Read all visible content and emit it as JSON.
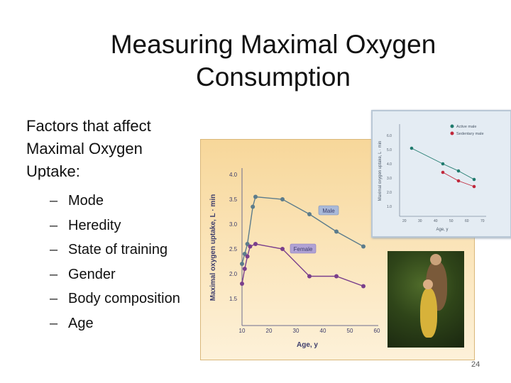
{
  "slide": {
    "title_line1": "Measuring Maximal Oxygen",
    "title_line2": "Consumption",
    "intro_line1": "Factors that affect",
    "intro_line2": "Maximal Oxygen",
    "intro_line3": "Uptake:",
    "factors": [
      "Mode",
      "Heredity",
      "State of training",
      "Gender",
      "Body composition",
      "Age"
    ],
    "bullet_char": "–",
    "page_number": "24"
  },
  "figure_main": {
    "ylabel": "Maximal oxygen uptake, L · min",
    "xlabel": "Age, y",
    "y_ticks": [
      "4.0",
      "3.5",
      "3.0",
      "2.5",
      "2.0",
      "1.5"
    ],
    "x_ticks": [
      "10",
      "20",
      "30",
      "40",
      "50",
      "60"
    ],
    "label_male": "Male",
    "label_female": "Female",
    "colors": {
      "male": "#5c7c8c",
      "female": "#7a3f8c",
      "label_bg": "#a9b9d8",
      "label_female_bg": "#b0a2d4"
    },
    "series": {
      "male": [
        [
          10,
          2.2
        ],
        [
          11,
          2.4
        ],
        [
          12,
          2.6
        ],
        [
          14,
          3.35
        ],
        [
          15,
          3.55
        ],
        [
          25,
          3.5
        ],
        [
          35,
          3.2
        ],
        [
          45,
          2.85
        ],
        [
          55,
          2.55
        ]
      ],
      "female": [
        [
          10,
          1.8
        ],
        [
          11,
          2.1
        ],
        [
          12,
          2.35
        ],
        [
          13,
          2.55
        ],
        [
          15,
          2.6
        ],
        [
          25,
          2.5
        ],
        [
          35,
          1.95
        ],
        [
          45,
          1.95
        ],
        [
          55,
          1.75
        ]
      ]
    }
  },
  "figure_inset": {
    "ylabel": "Maximal oxygen uptake, L · min",
    "xlabel": "Age, y",
    "legend_active": "Active male",
    "legend_sedentary": "Sedentary male",
    "y_ticks": [
      "6.0",
      "5.0",
      "4.0",
      "3.0",
      "2.0",
      "1.0"
    ],
    "x_ticks": [
      "20",
      "30",
      "40",
      "50",
      "60",
      "70"
    ],
    "colors": {
      "active": "#1f7a6d",
      "sedentary": "#c0283b"
    },
    "series": {
      "active": [
        [
          25,
          5.1
        ],
        [
          45,
          4.0
        ],
        [
          55,
          3.5
        ],
        [
          65,
          2.9
        ]
      ],
      "sedentary": [
        [
          45,
          3.4
        ],
        [
          55,
          2.8
        ],
        [
          65,
          2.4
        ]
      ]
    }
  }
}
